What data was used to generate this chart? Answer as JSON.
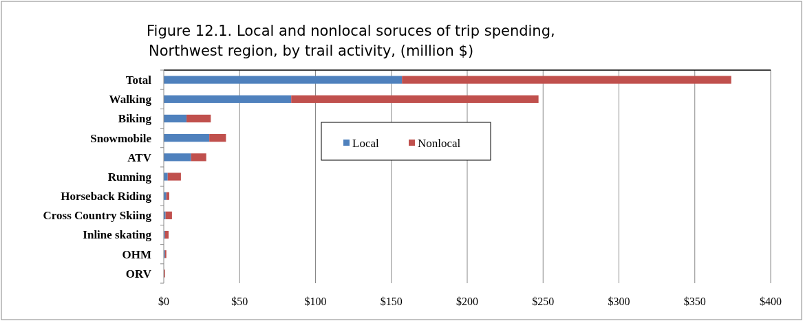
{
  "chart_data": {
    "type": "bar",
    "orientation": "horizontal",
    "stacked": true,
    "title": "Figure 12.1. Local and nonlocal soruces of trip spending,",
    "subtitle": "Northwest region,  by trail activity, (million $)",
    "categories": [
      "Total",
      "Walking",
      "Biking",
      "Snowmobile",
      "ATV",
      "Running",
      "Horseback Riding",
      "Cross Country Skiing",
      "Inline skating",
      "OHM",
      "ORV"
    ],
    "series": [
      {
        "name": "Local",
        "color": "#4f81bd",
        "values": [
          157,
          84,
          15,
          30,
          18,
          2.6,
          1.7,
          1.2,
          0.8,
          0.8,
          null
        ]
      },
      {
        "name": "Nonlocal",
        "color": "#c0504d",
        "values": [
          217,
          163,
          16,
          11,
          10,
          8.7,
          1.9,
          4.2,
          2.4,
          0.9,
          0.8
        ]
      }
    ],
    "xlim": [
      0,
      400
    ],
    "xticks": [
      {
        "value": 0,
        "label": "$0"
      },
      {
        "value": 50,
        "label": "$50"
      },
      {
        "value": 100,
        "label": "$100"
      },
      {
        "value": 150,
        "label": "$150"
      },
      {
        "value": 200,
        "label": "$200"
      },
      {
        "value": 250,
        "label": "$250"
      },
      {
        "value": 300,
        "label": "$300"
      },
      {
        "value": 350,
        "label": "$350"
      },
      {
        "value": 400,
        "label": "$400"
      }
    ],
    "grid": "x",
    "legend": "top"
  }
}
